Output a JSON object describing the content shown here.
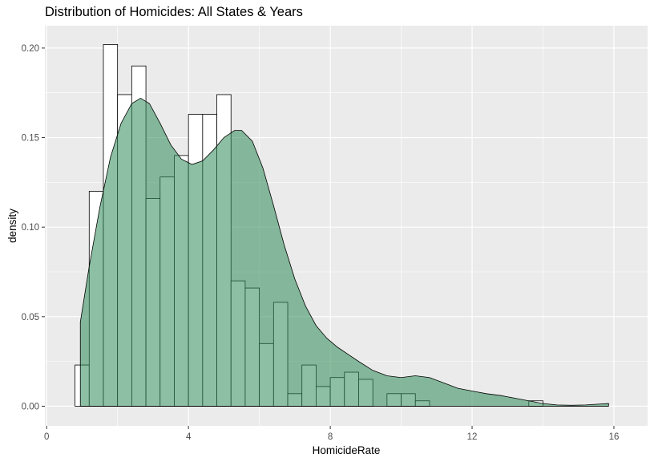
{
  "chart_data": {
    "type": "histogram",
    "title": "Distribution of Homicides: All States & Years",
    "xlabel": "HomicideRate",
    "ylabel": "density",
    "xlim": [
      -0.05,
      16.95
    ],
    "ylim": [
      -0.011,
      0.2125
    ],
    "x_ticks": [
      0,
      4,
      8,
      12,
      16
    ],
    "x_tick_labels": [
      "0",
      "4",
      "8",
      "12",
      "16"
    ],
    "y_ticks": [
      0,
      0.05,
      0.1,
      0.15,
      0.2
    ],
    "y_tick_labels": [
      "0.00",
      "0.05",
      "0.10",
      "0.15",
      "0.20"
    ],
    "grid": true,
    "bin_width": 0.4,
    "bins_start": 0.8,
    "histogram_density": [
      0.023,
      0.12,
      0.202,
      0.174,
      0.19,
      0.116,
      0.128,
      0.14,
      0.163,
      0.163,
      0.174,
      0.07,
      0.066,
      0.035,
      0.058,
      0.007,
      0.023,
      0.011,
      0.016,
      0.019,
      0.015,
      0.0,
      0.007,
      0.007,
      0.003,
      0.0,
      0.0,
      0.0,
      0.0,
      0.0,
      0.0,
      0.0,
      0.003
    ],
    "density_curve": {
      "x": [
        0.95,
        1.2,
        1.5,
        1.8,
        2.1,
        2.4,
        2.65,
        2.9,
        3.2,
        3.5,
        3.8,
        4.1,
        4.4,
        4.7,
        5.0,
        5.3,
        5.5,
        5.8,
        6.1,
        6.4,
        6.7,
        7.0,
        7.3,
        7.6,
        7.9,
        8.2,
        8.5,
        8.8,
        9.2,
        9.6,
        10.0,
        10.4,
        10.8,
        11.2,
        11.6,
        12.0,
        12.4,
        12.8,
        13.2,
        13.6,
        14.0,
        14.4,
        14.8,
        15.2,
        15.6,
        15.85
      ],
      "y": [
        0.047,
        0.078,
        0.111,
        0.139,
        0.158,
        0.169,
        0.172,
        0.169,
        0.158,
        0.146,
        0.138,
        0.135,
        0.137,
        0.143,
        0.15,
        0.154,
        0.154,
        0.148,
        0.133,
        0.112,
        0.09,
        0.071,
        0.056,
        0.045,
        0.038,
        0.033,
        0.029,
        0.025,
        0.02,
        0.017,
        0.016,
        0.017,
        0.016,
        0.013,
        0.01,
        0.0085,
        0.007,
        0.006,
        0.0045,
        0.003,
        0.0015,
        0.0007,
        0.0005,
        0.0007,
        0.0012,
        0.0015
      ]
    },
    "colors": {
      "panel_background": "#ebebeb",
      "grid_major": "#ffffff",
      "histogram_fill": "#ffffff",
      "histogram_outline": "#000000",
      "density_fill": "#2e8b57",
      "density_fill_opacity": 0.55,
      "density_outline": "#000000",
      "tick_text": "#4d4d4d"
    }
  }
}
